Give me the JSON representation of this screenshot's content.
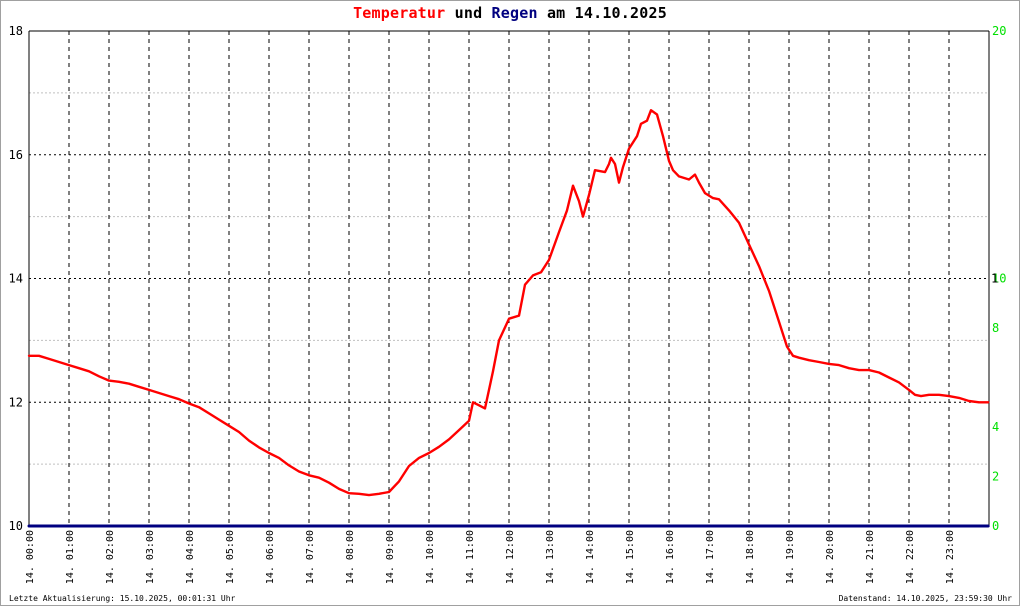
{
  "title": {
    "part1": "Temperatur",
    "part2": "und",
    "part3": "Regen",
    "part4": "am 14.10.2025",
    "color1": "#ff0000",
    "color2": "#000000",
    "color3": "#000080",
    "color4": "#000000"
  },
  "footer": {
    "left": "Letzte Aktualisierung: 15.10.2025, 00:01:31 Uhr",
    "right": "Datenstand: 14.10.2025, 23:59:30 Uhr"
  },
  "chart_data": {
    "type": "line",
    "title": "Temperatur und Regen am 14.10.2025",
    "x_hours_range": [
      0,
      23.98
    ],
    "x_tick_labels": [
      "14. 00:00",
      "14. 01:00",
      "14. 02:00",
      "14. 03:00",
      "14. 04:00",
      "14. 05:00",
      "14. 06:00",
      "14. 07:00",
      "14. 08:00",
      "14. 09:00",
      "14. 10:00",
      "14. 11:00",
      "14. 12:00",
      "14. 13:00",
      "14. 14:00",
      "14. 15:00",
      "14. 16:00",
      "14. 17:00",
      "14. 18:00",
      "14. 19:00",
      "14. 20:00",
      "14. 21:00",
      "14. 22:00",
      "14. 23:00"
    ],
    "y_left": {
      "range": [
        10,
        18
      ],
      "ticks": [
        10,
        12,
        14,
        16,
        18
      ],
      "color": "#000000"
    },
    "y_right": {
      "range": [
        0,
        20
      ],
      "ticks": [
        0,
        2,
        4,
        6,
        8,
        10,
        12,
        14,
        16,
        18,
        20
      ],
      "labels": [
        "0",
        "2",
        "4",
        "",
        "8",
        "10",
        "",
        "",
        "",
        "",
        "20"
      ],
      "color": "#00e000"
    },
    "grid": true,
    "series": [
      {
        "color": "#ff0000",
        "axis": "left",
        "points": [
          [
            0.0,
            12.75
          ],
          [
            0.25,
            12.75
          ],
          [
            0.5,
            12.7
          ],
          [
            0.75,
            12.65
          ],
          [
            1.0,
            12.6
          ],
          [
            1.25,
            12.55
          ],
          [
            1.5,
            12.5
          ],
          [
            1.75,
            12.42
          ],
          [
            2.0,
            12.35
          ],
          [
            2.25,
            12.33
          ],
          [
            2.5,
            12.3
          ],
          [
            2.75,
            12.25
          ],
          [
            3.0,
            12.2
          ],
          [
            3.25,
            12.15
          ],
          [
            3.5,
            12.1
          ],
          [
            3.75,
            12.05
          ],
          [
            4.0,
            11.98
          ],
          [
            4.25,
            11.92
          ],
          [
            4.5,
            11.82
          ],
          [
            4.75,
            11.72
          ],
          [
            5.0,
            11.62
          ],
          [
            5.25,
            11.52
          ],
          [
            5.5,
            11.38
          ],
          [
            5.75,
            11.27
          ],
          [
            6.0,
            11.18
          ],
          [
            6.25,
            11.1
          ],
          [
            6.5,
            10.98
          ],
          [
            6.75,
            10.88
          ],
          [
            7.0,
            10.82
          ],
          [
            7.25,
            10.78
          ],
          [
            7.5,
            10.7
          ],
          [
            7.75,
            10.6
          ],
          [
            8.0,
            10.53
          ],
          [
            8.25,
            10.52
          ],
          [
            8.5,
            10.5
          ],
          [
            8.75,
            10.52
          ],
          [
            9.0,
            10.55
          ],
          [
            9.25,
            10.72
          ],
          [
            9.5,
            10.97
          ],
          [
            9.75,
            11.1
          ],
          [
            10.0,
            11.18
          ],
          [
            10.25,
            11.28
          ],
          [
            10.5,
            11.4
          ],
          [
            10.75,
            11.55
          ],
          [
            11.0,
            11.7
          ],
          [
            11.1,
            12.0
          ],
          [
            11.25,
            11.95
          ],
          [
            11.4,
            11.9
          ],
          [
            11.6,
            12.5
          ],
          [
            11.75,
            13.0
          ],
          [
            12.0,
            13.35
          ],
          [
            12.25,
            13.4
          ],
          [
            12.4,
            13.9
          ],
          [
            12.6,
            14.05
          ],
          [
            12.8,
            14.1
          ],
          [
            13.0,
            14.3
          ],
          [
            13.25,
            14.75
          ],
          [
            13.45,
            15.1
          ],
          [
            13.6,
            15.5
          ],
          [
            13.75,
            15.25
          ],
          [
            13.85,
            15.0
          ],
          [
            14.0,
            15.35
          ],
          [
            14.15,
            15.75
          ],
          [
            14.4,
            15.72
          ],
          [
            14.5,
            15.85
          ],
          [
            14.55,
            15.95
          ],
          [
            14.65,
            15.85
          ],
          [
            14.75,
            15.55
          ],
          [
            14.85,
            15.8
          ],
          [
            15.0,
            16.1
          ],
          [
            15.2,
            16.3
          ],
          [
            15.3,
            16.5
          ],
          [
            15.45,
            16.55
          ],
          [
            15.55,
            16.72
          ],
          [
            15.7,
            16.65
          ],
          [
            15.85,
            16.3
          ],
          [
            16.0,
            15.9
          ],
          [
            16.1,
            15.75
          ],
          [
            16.25,
            15.65
          ],
          [
            16.5,
            15.6
          ],
          [
            16.65,
            15.68
          ],
          [
            16.75,
            15.55
          ],
          [
            16.9,
            15.38
          ],
          [
            17.1,
            15.3
          ],
          [
            17.25,
            15.28
          ],
          [
            17.5,
            15.1
          ],
          [
            17.75,
            14.9
          ],
          [
            18.0,
            14.55
          ],
          [
            18.25,
            14.2
          ],
          [
            18.5,
            13.8
          ],
          [
            18.75,
            13.3
          ],
          [
            18.95,
            12.9
          ],
          [
            19.1,
            12.75
          ],
          [
            19.25,
            12.72
          ],
          [
            19.5,
            12.68
          ],
          [
            19.75,
            12.65
          ],
          [
            20.0,
            12.62
          ],
          [
            20.25,
            12.6
          ],
          [
            20.5,
            12.55
          ],
          [
            20.75,
            12.52
          ],
          [
            21.0,
            12.52
          ],
          [
            21.25,
            12.48
          ],
          [
            21.5,
            12.4
          ],
          [
            21.75,
            12.32
          ],
          [
            22.0,
            12.2
          ],
          [
            22.15,
            12.12
          ],
          [
            22.3,
            12.1
          ],
          [
            22.5,
            12.12
          ],
          [
            22.75,
            12.12
          ],
          [
            23.0,
            12.1
          ],
          [
            23.25,
            12.07
          ],
          [
            23.5,
            12.02
          ],
          [
            23.75,
            12.0
          ],
          [
            23.98,
            12.0
          ]
        ]
      },
      {
        "color": "#000080",
        "axis": "right",
        "points": [
          [
            0.0,
            0
          ],
          [
            23.98,
            0
          ]
        ]
      }
    ]
  }
}
